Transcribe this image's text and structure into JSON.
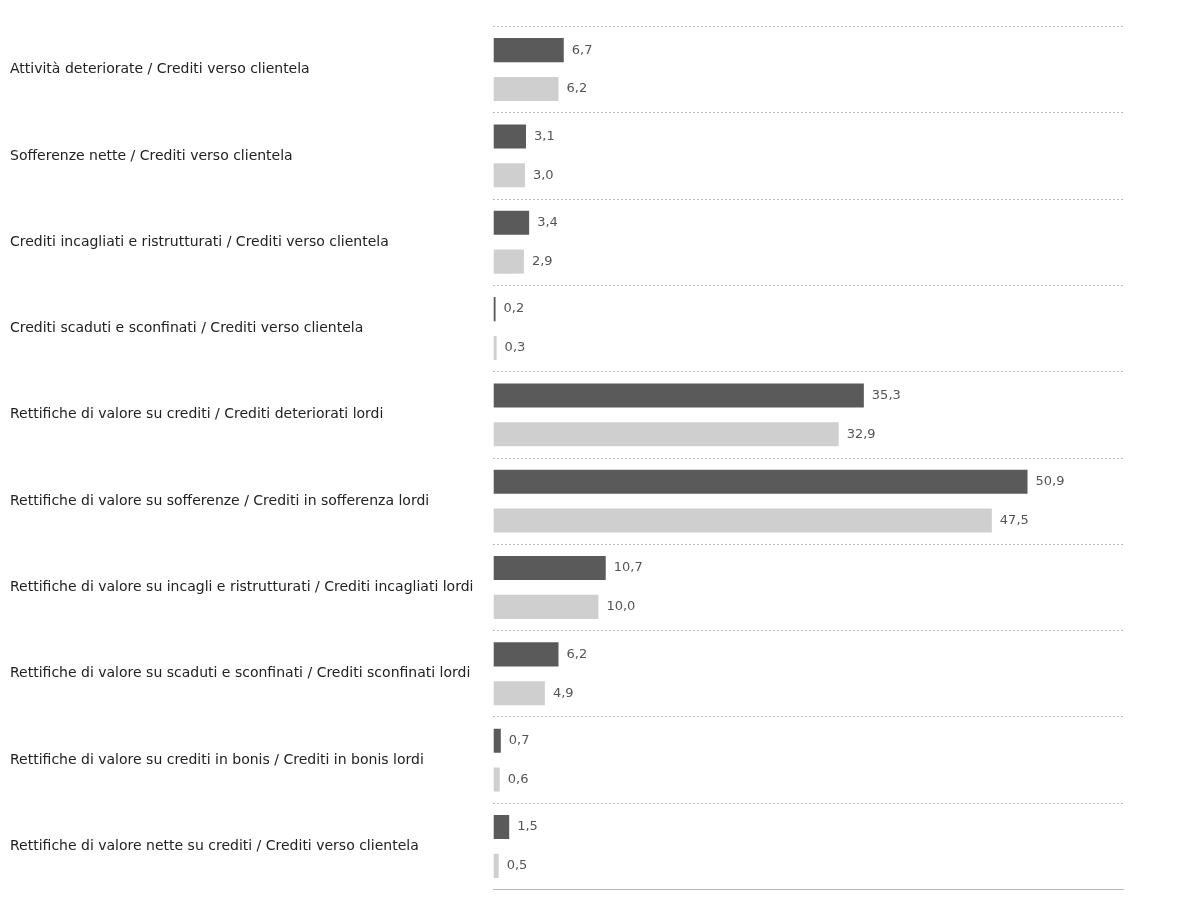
{
  "chart_data": {
    "type": "bar",
    "orientation": "horizontal",
    "categories": [
      "Attività deteriorate / Crediti verso clientela",
      "Sofferenze nette / Crediti verso clientela",
      "Crediti incagliati e ristrutturati / Crediti verso clientela",
      "Crediti scaduti e sconfinati / Crediti verso clientela",
      "Rettifiche di valore su crediti / Crediti deteriorati lordi",
      "Rettifiche di valore su sofferenze / Crediti in sofferenza lordi",
      "Rettifiche di valore su incagli e ristrutturati / Crediti incagliati lordi",
      "Rettifiche di valore su scaduti e sconfinati / Crediti sconfinati lordi",
      "Rettifiche di valore su crediti in bonis / Crediti in bonis lordi",
      "Rettifiche di valore nette su crediti / Crediti verso clientela"
    ],
    "series": [
      {
        "color": "#5a5a5a",
        "values": [
          6.7,
          3.1,
          3.4,
          0.2,
          35.3,
          50.9,
          10.7,
          6.2,
          0.7,
          1.5
        ],
        "value_labels": [
          "6,7",
          "3,1",
          "3,4",
          "0,2",
          "35,3",
          "50,9",
          "10,7",
          "6,2",
          "0,7",
          "1,5"
        ]
      },
      {
        "color": "#cfcfcf",
        "values": [
          6.2,
          3.0,
          2.9,
          0.3,
          32.9,
          47.5,
          10.0,
          4.9,
          0.6,
          0.5
        ],
        "value_labels": [
          "6,2",
          "3,0",
          "2,9",
          "0,3",
          "32,9",
          "47,5",
          "10,0",
          "4,9",
          "0,6",
          "0,5"
        ]
      }
    ],
    "grid": "y",
    "legend": false
  }
}
